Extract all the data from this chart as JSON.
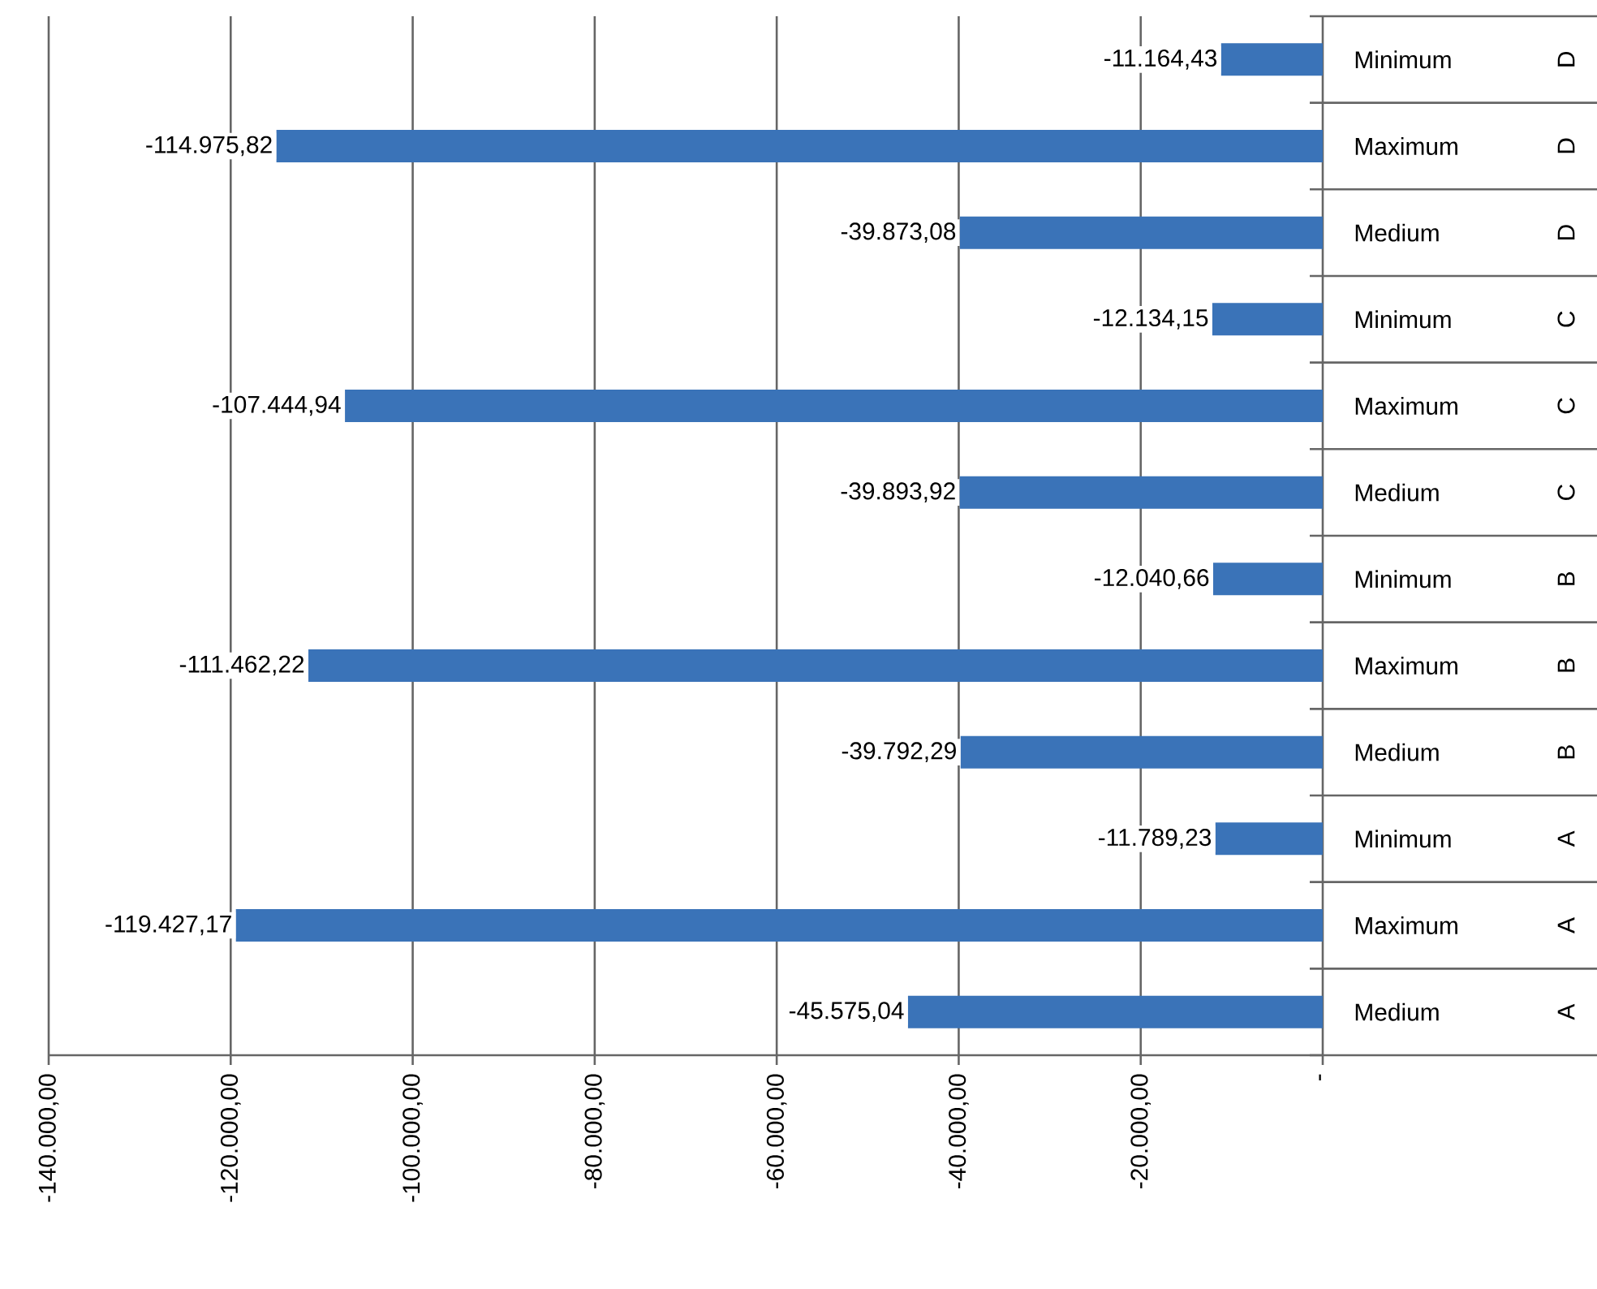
{
  "chart_data": {
    "type": "bar",
    "orientation": "horizontal",
    "categories": [
      "Minimum",
      "Maximum",
      "Medium",
      "Minimum",
      "Maximum",
      "Medium",
      "Minimum",
      "Maximum",
      "Medium",
      "Minimum",
      "Maximum",
      "Medium"
    ],
    "annotations": [
      "D",
      "D",
      "D",
      "C",
      "C",
      "C",
      "B",
      "B",
      "B",
      "A",
      "A",
      "A"
    ],
    "values": [
      -11164.43,
      -114975.82,
      -39873.08,
      -12134.15,
      -107444.94,
      -39893.92,
      -12040.66,
      -111462.22,
      -39792.29,
      -11789.23,
      -119427.17,
      -45575.04
    ],
    "value_labels": [
      "-11.164,43",
      "-114.975,82",
      "-39.873,08",
      "-12.134,15",
      "-107.444,94",
      "-39.893,92",
      "-12.040,66",
      "-111.462,22",
      "-39.792,29",
      "-11.789,23",
      "-119.427,17",
      "-45.575,04"
    ],
    "color": "#3a73b8",
    "xlim": [
      -140000,
      0
    ],
    "xticks": [
      {
        "value": -140000,
        "label": "-140.000,00"
      },
      {
        "value": -120000,
        "label": "-120.000,00"
      },
      {
        "value": -100000,
        "label": "-100.000,00"
      },
      {
        "value": -80000,
        "label": "-80.000,00"
      },
      {
        "value": -60000,
        "label": "-60.000,00"
      },
      {
        "value": -40000,
        "label": "-40.000,00"
      },
      {
        "value": -20000,
        "label": "-20.000,00"
      },
      {
        "value": 0,
        "label": "-"
      }
    ],
    "grid": "x"
  }
}
